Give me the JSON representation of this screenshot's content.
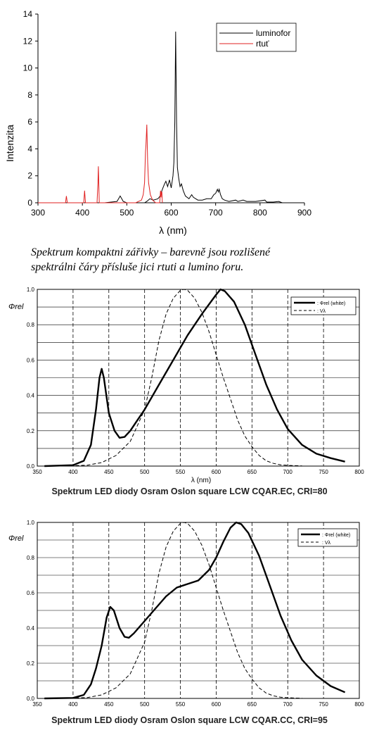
{
  "chart_data": [
    {
      "type": "line",
      "xlabel": "λ  (nm)",
      "ylabel": "Intenzita",
      "xlim": [
        300,
        900
      ],
      "ylim": [
        0,
        14
      ],
      "x_ticks": [
        300,
        400,
        500,
        600,
        700,
        800,
        900
      ],
      "y_ticks": [
        0,
        2,
        4,
        6,
        8,
        10,
        12,
        14
      ],
      "grid": false,
      "legend_position": "top-right",
      "series": [
        {
          "name": "luminofor",
          "color": "#000000",
          "points": [
            [
              450,
              0
            ],
            [
              478,
              0.1
            ],
            [
              485,
              0.5
            ],
            [
              492,
              0.1
            ],
            [
              500,
              0
            ],
            [
              540,
              0
            ],
            [
              545,
              0.1
            ],
            [
              552,
              0.3
            ],
            [
              560,
              0.2
            ],
            [
              570,
              0.3
            ],
            [
              575,
              0.5
            ],
            [
              580,
              1.0
            ],
            [
              585,
              1.4
            ],
            [
              588,
              1.6
            ],
            [
              592,
              1.2
            ],
            [
              596,
              1.7
            ],
            [
              600,
              1.1
            ],
            [
              604,
              2.0
            ],
            [
              606,
              3.0
            ],
            [
              608,
              6.0
            ],
            [
              610,
              12.7
            ],
            [
              612,
              6.0
            ],
            [
              614,
              2.6
            ],
            [
              617,
              1.8
            ],
            [
              620,
              1.2
            ],
            [
              623,
              1.4
            ],
            [
              627,
              0.9
            ],
            [
              632,
              0.5
            ],
            [
              640,
              0.3
            ],
            [
              646,
              0.6
            ],
            [
              650,
              0.4
            ],
            [
              660,
              0.2
            ],
            [
              670,
              0.2
            ],
            [
              680,
              0.3
            ],
            [
              690,
              0.3
            ],
            [
              696,
              0.6
            ],
            [
              700,
              0.7
            ],
            [
              704,
              1.0
            ],
            [
              706,
              0.8
            ],
            [
              708,
              1.0
            ],
            [
              711,
              0.6
            ],
            [
              715,
              0.3
            ],
            [
              720,
              0.2
            ],
            [
              730,
              0.1
            ],
            [
              745,
              0.2
            ],
            [
              750,
              0.1
            ],
            [
              762,
              0.2
            ],
            [
              770,
              0.1
            ],
            [
              790,
              0.1
            ],
            [
              811,
              0.2
            ],
            [
              815,
              0.05
            ],
            [
              830,
              0.05
            ],
            [
              842,
              0.1
            ],
            [
              850,
              0
            ]
          ]
        },
        {
          "name": "rtuť",
          "color": "#e02020",
          "points": [
            [
              300,
              0
            ],
            [
              362,
              0
            ],
            [
              364,
              0.5
            ],
            [
              366,
              0
            ],
            [
              400,
              0
            ],
            [
              403,
              0
            ],
            [
              405,
              0.9
            ],
            [
              407,
              0
            ],
            [
              433,
              0
            ],
            [
              435,
              1.5
            ],
            [
              436,
              2.7
            ],
            [
              438,
              0
            ],
            [
              520,
              0
            ],
            [
              533,
              0.2
            ],
            [
              537,
              0.6
            ],
            [
              540,
              1.5
            ],
            [
              542,
              3.8
            ],
            [
              543,
              4.2
            ],
            [
              545,
              5.8
            ],
            [
              547,
              3.0
            ],
            [
              549,
              1.5
            ],
            [
              553,
              0.6
            ],
            [
              558,
              0.2
            ],
            [
              565,
              0
            ],
            [
              574,
              0
            ],
            [
              576,
              0.9
            ],
            [
              577,
              0.4
            ],
            [
              578,
              0.8
            ],
            [
              579,
              0.8
            ],
            [
              580,
              0
            ]
          ]
        }
      ]
    },
    {
      "type": "line",
      "title": "Spektrum LED diody Osram Oslon square LCW CQAR.EC, CRI=80",
      "xlabel": "λ (nm)",
      "ylabel": "Φrel",
      "xlim": [
        350,
        800
      ],
      "ylim": [
        0,
        1.0
      ],
      "x_ticks": [
        350,
        400,
        450,
        500,
        550,
        600,
        650,
        700,
        750,
        800
      ],
      "y_ticks": [
        0.0,
        0.2,
        0.4,
        0.6,
        0.8,
        1.0
      ],
      "grid": true,
      "legend_position": "top-right",
      "series": [
        {
          "name": ": Φrel (white)",
          "style": "solid",
          "points": [
            [
              360,
              0
            ],
            [
              400,
              0.005
            ],
            [
              415,
              0.03
            ],
            [
              425,
              0.12
            ],
            [
              432,
              0.32
            ],
            [
              437,
              0.5
            ],
            [
              440,
              0.55
            ],
            [
              443,
              0.5
            ],
            [
              450,
              0.3
            ],
            [
              458,
              0.2
            ],
            [
              465,
              0.16
            ],
            [
              472,
              0.165
            ],
            [
              480,
              0.2
            ],
            [
              490,
              0.26
            ],
            [
              500,
              0.32
            ],
            [
              520,
              0.46
            ],
            [
              540,
              0.6
            ],
            [
              560,
              0.74
            ],
            [
              580,
              0.86
            ],
            [
              600,
              0.97
            ],
            [
              606,
              1.0
            ],
            [
              612,
              0.99
            ],
            [
              625,
              0.93
            ],
            [
              640,
              0.8
            ],
            [
              655,
              0.63
            ],
            [
              670,
              0.46
            ],
            [
              685,
              0.32
            ],
            [
              700,
              0.21
            ],
            [
              720,
              0.12
            ],
            [
              740,
              0.07
            ],
            [
              760,
              0.045
            ],
            [
              780,
              0.025
            ]
          ]
        },
        {
          "name": ": Vλ",
          "style": "dashed",
          "points": [
            [
              380,
              0
            ],
            [
              420,
              0.005
            ],
            [
              440,
              0.02
            ],
            [
              460,
              0.06
            ],
            [
              480,
              0.14
            ],
            [
              500,
              0.32
            ],
            [
              510,
              0.5
            ],
            [
              520,
              0.71
            ],
            [
              530,
              0.86
            ],
            [
              540,
              0.95
            ],
            [
              550,
              0.995
            ],
            [
              555,
              1.0
            ],
            [
              560,
              0.995
            ],
            [
              570,
              0.95
            ],
            [
              580,
              0.87
            ],
            [
              590,
              0.76
            ],
            [
              600,
              0.63
            ],
            [
              610,
              0.5
            ],
            [
              620,
              0.38
            ],
            [
              630,
              0.26
            ],
            [
              640,
              0.17
            ],
            [
              650,
              0.11
            ],
            [
              660,
              0.06
            ],
            [
              670,
              0.03
            ],
            [
              680,
              0.015
            ],
            [
              690,
              0.007
            ],
            [
              700,
              0.004
            ],
            [
              720,
              0.001
            ]
          ]
        }
      ]
    },
    {
      "type": "line",
      "title": "Spektrum LED diody Osram Oslon square LCW CQAR.CC, CRI=95",
      "ylabel": "Φrel",
      "xlim": [
        350,
        800
      ],
      "ylim": [
        0,
        1.0
      ],
      "x_ticks": [
        350,
        400,
        450,
        500,
        550,
        600,
        650,
        700,
        750,
        800
      ],
      "y_ticks": [
        0.0,
        0.2,
        0.4,
        0.6,
        0.8,
        1.0
      ],
      "grid": true,
      "legend_position": "top-right",
      "series": [
        {
          "name": ": Φrel (white)",
          "style": "solid",
          "points": [
            [
              360,
              0
            ],
            [
              400,
              0.003
            ],
            [
              415,
              0.02
            ],
            [
              425,
              0.08
            ],
            [
              432,
              0.17
            ],
            [
              440,
              0.3
            ],
            [
              447,
              0.46
            ],
            [
              452,
              0.52
            ],
            [
              457,
              0.5
            ],
            [
              465,
              0.4
            ],
            [
              472,
              0.35
            ],
            [
              478,
              0.345
            ],
            [
              485,
              0.37
            ],
            [
              500,
              0.44
            ],
            [
              515,
              0.51
            ],
            [
              530,
              0.58
            ],
            [
              545,
              0.63
            ],
            [
              560,
              0.65
            ],
            [
              575,
              0.67
            ],
            [
              590,
              0.73
            ],
            [
              600,
              0.8
            ],
            [
              610,
              0.89
            ],
            [
              620,
              0.97
            ],
            [
              628,
              1.0
            ],
            [
              635,
              0.99
            ],
            [
              645,
              0.94
            ],
            [
              660,
              0.81
            ],
            [
              675,
              0.64
            ],
            [
              690,
              0.47
            ],
            [
              705,
              0.33
            ],
            [
              720,
              0.22
            ],
            [
              740,
              0.13
            ],
            [
              760,
              0.07
            ],
            [
              780,
              0.035
            ]
          ]
        },
        {
          "name": ": Vλ",
          "style": "dashed",
          "points": [
            [
              380,
              0
            ],
            [
              420,
              0.005
            ],
            [
              440,
              0.02
            ],
            [
              460,
              0.06
            ],
            [
              480,
              0.14
            ],
            [
              500,
              0.32
            ],
            [
              510,
              0.5
            ],
            [
              520,
              0.71
            ],
            [
              530,
              0.86
            ],
            [
              540,
              0.95
            ],
            [
              550,
              0.995
            ],
            [
              555,
              1.0
            ],
            [
              560,
              0.995
            ],
            [
              570,
              0.95
            ],
            [
              580,
              0.87
            ],
            [
              590,
              0.76
            ],
            [
              600,
              0.63
            ],
            [
              610,
              0.5
            ],
            [
              620,
              0.38
            ],
            [
              630,
              0.26
            ],
            [
              640,
              0.17
            ],
            [
              650,
              0.11
            ],
            [
              660,
              0.06
            ],
            [
              670,
              0.03
            ],
            [
              680,
              0.015
            ],
            [
              690,
              0.007
            ],
            [
              700,
              0.004
            ],
            [
              720,
              0.001
            ]
          ]
        }
      ]
    }
  ],
  "caption_top": {
    "line1": "Spektrum kompaktni zářivky – barevně jsou rozlišené",
    "line2": "spektrálni čáry přísluše jici rtuti a lumino foru."
  }
}
